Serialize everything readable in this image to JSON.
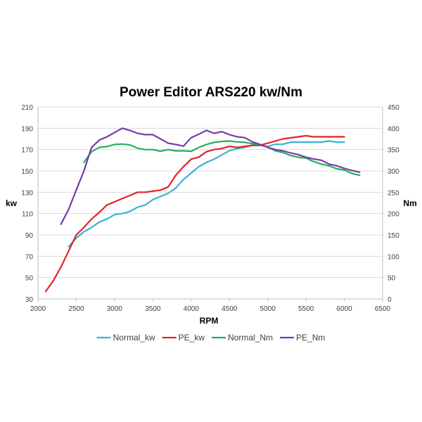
{
  "chart_data": {
    "type": "line",
    "title": "Power Editor ARS220 kw/Nm",
    "xlabel": "RPM",
    "ylabel_left": "kw",
    "ylabel_right": "Nm",
    "xlim": [
      2000,
      6500
    ],
    "ylim_left": [
      30,
      210
    ],
    "ylim_right": [
      0,
      450
    ],
    "x_ticks": [
      2000,
      2500,
      3000,
      3500,
      4000,
      4500,
      5000,
      5500,
      6000,
      6500
    ],
    "y_ticks_left": [
      30,
      50,
      70,
      90,
      110,
      130,
      150,
      170,
      190,
      210
    ],
    "y_ticks_right": [
      0,
      50,
      100,
      150,
      200,
      250,
      300,
      350,
      400,
      450
    ],
    "grid": "horizontal",
    "legend_position": "bottom",
    "series": [
      {
        "name": "Normal_kw",
        "axis": "left",
        "color": "#3bb3d6",
        "x": [
          2400,
          2500,
          2600,
          2700,
          2800,
          2900,
          3000,
          3100,
          3200,
          3300,
          3400,
          3500,
          3600,
          3700,
          3800,
          3900,
          4000,
          4100,
          4200,
          4300,
          4400,
          4500,
          4600,
          4700,
          4800,
          4900,
          5000,
          5100,
          5200,
          5300,
          5400,
          5500,
          5600,
          5700,
          5800,
          5900,
          6000
        ],
        "values": [
          79,
          87,
          93,
          97,
          102,
          105,
          109,
          110,
          112,
          116,
          118,
          123,
          126,
          129,
          134,
          142,
          148,
          154,
          158,
          161,
          165,
          169,
          171,
          172,
          174,
          174,
          173,
          175,
          175,
          177,
          177,
          177,
          177,
          177,
          178,
          177,
          177
        ]
      },
      {
        "name": "PE_kw",
        "axis": "left",
        "color": "#e3222b",
        "x": [
          2100,
          2200,
          2300,
          2400,
          2500,
          2600,
          2700,
          2800,
          2900,
          3000,
          3100,
          3200,
          3300,
          3400,
          3500,
          3600,
          3700,
          3800,
          3900,
          4000,
          4100,
          4200,
          4300,
          4400,
          4500,
          4600,
          4700,
          4800,
          4900,
          5000,
          5100,
          5200,
          5300,
          5400,
          5500,
          5600,
          5700,
          5800,
          5900,
          6000
        ],
        "values": [
          37,
          47,
          60,
          75,
          90,
          97,
          105,
          111,
          118,
          121,
          124,
          127,
          130,
          130,
          131,
          132,
          135,
          146,
          154,
          161,
          163,
          168,
          170,
          171,
          173,
          172,
          173,
          174,
          174,
          176,
          178,
          180,
          181,
          182,
          183,
          182,
          182,
          182,
          182,
          182
        ]
      },
      {
        "name": "Normal_Nm",
        "axis": "right",
        "color": "#27ad5f",
        "x": [
          2600,
          2700,
          2800,
          2900,
          3000,
          3100,
          3200,
          3300,
          3400,
          3500,
          3600,
          3700,
          3800,
          3900,
          4000,
          4100,
          4200,
          4300,
          4400,
          4500,
          4600,
          4700,
          4800,
          4900,
          5000,
          5100,
          5200,
          5300,
          5400,
          5500,
          5600,
          5700,
          5800,
          5900,
          6000,
          6100,
          6200
        ],
        "values": [
          320,
          345,
          355,
          357,
          362,
          363,
          361,
          353,
          350,
          350,
          346,
          350,
          347,
          347,
          346,
          355,
          362,
          367,
          369,
          370,
          368,
          367,
          364,
          361,
          356,
          347,
          343,
          336,
          332,
          330,
          322,
          316,
          312,
          305,
          302,
          294,
          290
        ]
      },
      {
        "name": "PE_Nm",
        "axis": "right",
        "color": "#7a3aa8",
        "x": [
          2300,
          2400,
          2500,
          2600,
          2700,
          2800,
          2900,
          3000,
          3100,
          3200,
          3300,
          3400,
          3500,
          3600,
          3700,
          3800,
          3900,
          4000,
          4100,
          4200,
          4300,
          4400,
          4500,
          4600,
          4700,
          4800,
          4900,
          5000,
          5100,
          5200,
          5300,
          5400,
          5500,
          5600,
          5700,
          5800,
          5900,
          6000,
          6100,
          6200
        ],
        "values": [
          175,
          210,
          255,
          300,
          355,
          372,
          380,
          390,
          400,
          395,
          388,
          385,
          385,
          375,
          365,
          362,
          358,
          378,
          386,
          395,
          388,
          392,
          385,
          380,
          378,
          368,
          362,
          355,
          350,
          347,
          342,
          338,
          332,
          328,
          325,
          316,
          312,
          306,
          301,
          297
        ]
      }
    ]
  }
}
